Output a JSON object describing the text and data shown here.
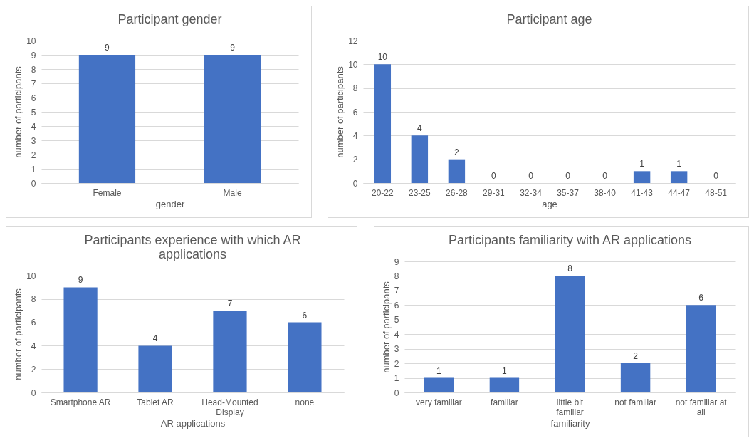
{
  "chart_data": [
    {
      "type": "bar",
      "title": "Participant gender",
      "xlabel": "gender",
      "ylabel": "number of participants",
      "categories": [
        "Female",
        "Male"
      ],
      "values": [
        9,
        9
      ],
      "color": "#4472c4",
      "ylim": [
        0,
        10
      ],
      "yticks": [
        0,
        1,
        2,
        3,
        4,
        5,
        6,
        7,
        8,
        9,
        10
      ],
      "grid": "y",
      "data_labels": true
    },
    {
      "type": "bar",
      "title": "Participant age",
      "xlabel": "age",
      "ylabel": "number of participants",
      "categories": [
        "20-22",
        "23-25",
        "26-28",
        "29-31",
        "32-34",
        "35-37",
        "38-40",
        "41-43",
        "44-47",
        "48-51"
      ],
      "values": [
        10,
        4,
        2,
        0,
        0,
        0,
        0,
        1,
        1,
        0
      ],
      "color": "#4472c4",
      "ylim": [
        0,
        12
      ],
      "yticks": [
        0,
        2,
        4,
        6,
        8,
        10,
        12
      ],
      "grid": "y",
      "data_labels": true
    },
    {
      "type": "bar",
      "title": "Participants experience with which AR applications",
      "xlabel": "AR applications",
      "ylabel": "number of participants",
      "categories": [
        "Smartphone AR",
        "Tablet AR",
        "Head-Mounted Display",
        "none"
      ],
      "values": [
        9,
        4,
        7,
        6
      ],
      "color": "#4472c4",
      "ylim": [
        0,
        10
      ],
      "yticks": [
        0,
        2,
        4,
        6,
        8,
        10
      ],
      "grid": "y",
      "data_labels": true
    },
    {
      "type": "bar",
      "title": "Participants familiarity with AR applications",
      "xlabel": "familiarity",
      "ylabel": "number of participants",
      "categories": [
        "very familiar",
        "familiar",
        "little bit familiar",
        "not familiar",
        "not familiar at all"
      ],
      "values": [
        1,
        1,
        8,
        2,
        6
      ],
      "color": "#4472c4",
      "ylim": [
        0,
        9
      ],
      "yticks": [
        0,
        1,
        2,
        3,
        4,
        5,
        6,
        7,
        8,
        9
      ],
      "grid": "y",
      "data_labels": true
    }
  ]
}
